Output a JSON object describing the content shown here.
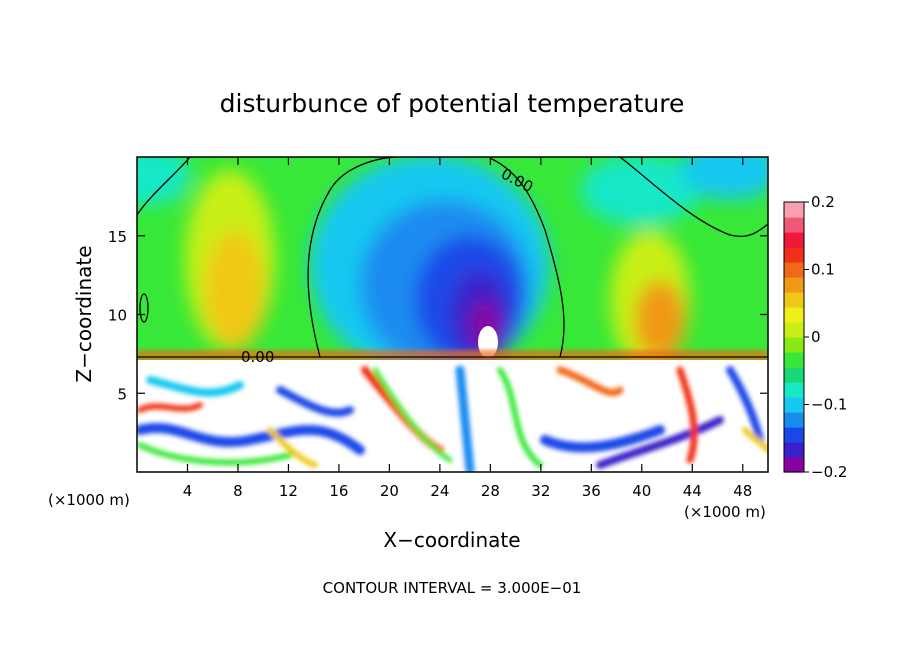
{
  "chart_data": {
    "type": "heatmap",
    "title": "disturbunce of potential temperature",
    "xlabel": "X−coordinate",
    "ylabel": "Z−coordinate",
    "x_unit_left": "(×1000 m)",
    "x_unit_right": "(×1000 m)",
    "xlim": [
      0,
      50
    ],
    "ylim": [
      0,
      20
    ],
    "x_ticks": [
      "4",
      "8",
      "12",
      "16",
      "20",
      "24",
      "28",
      "32",
      "36",
      "40",
      "44",
      "48"
    ],
    "y_ticks": [
      "5",
      "10",
      "15"
    ],
    "colorbar": {
      "range": [
        -0.2,
        0.2
      ],
      "ticks": [
        "0.2",
        "0.1",
        "0",
        "−0.1",
        "−0.2"
      ],
      "colors": [
        "#8b00a0",
        "#3a20c8",
        "#1a48e8",
        "#1a8cf0",
        "#18c8f0",
        "#18e8c8",
        "#18d878",
        "#38e838",
        "#88e818",
        "#c8f018",
        "#f0f018",
        "#f0c818",
        "#f09818",
        "#f06818",
        "#f03018",
        "#f01838",
        "#f05878",
        "#f8a0b0"
      ]
    },
    "contour_labels": [
      "0.00",
      "0.00"
    ],
    "footer": "CONTOUR INTERVAL = 3.000E−01",
    "approx_features": [
      {
        "region": "upper layer z 7–20",
        "description_values": {
          "x": [
            14,
            34
          ],
          "min": -0.2,
          "location_of_min": 28
        }
      },
      {
        "region": "warm lobes",
        "x": [
          4,
          44
        ],
        "max": 0.12
      }
    ]
  }
}
